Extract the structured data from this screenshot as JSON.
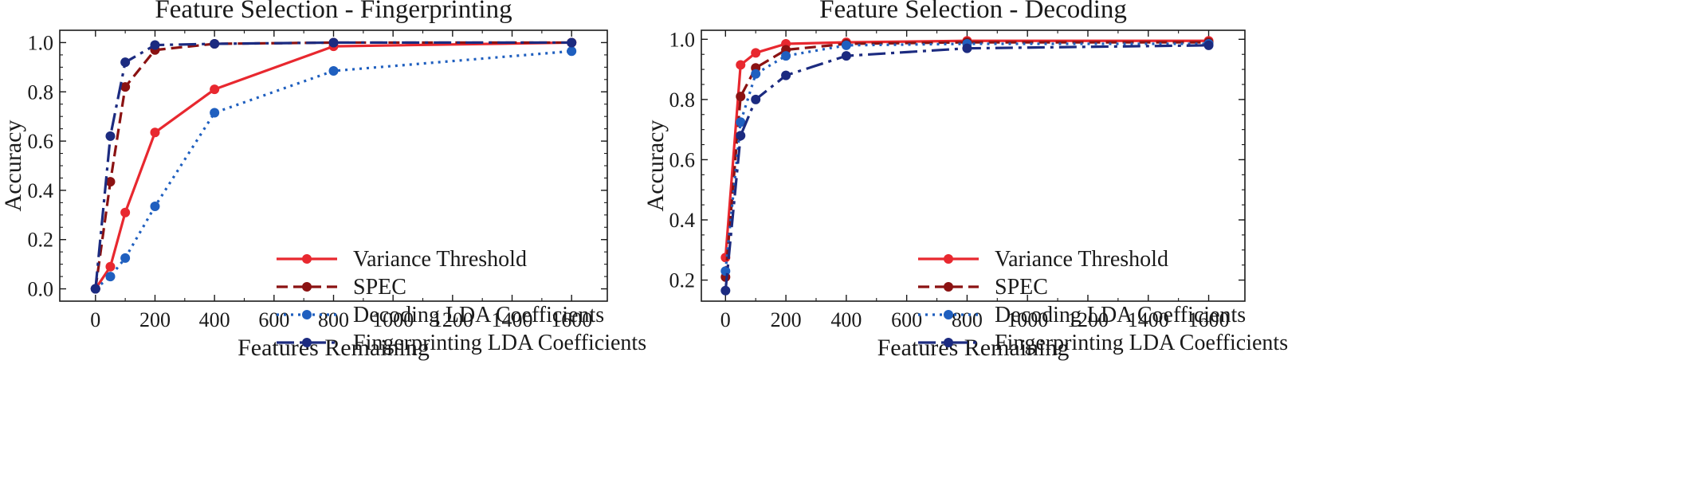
{
  "colors": {
    "variance": "#e8282f",
    "spec": "#8b1212",
    "decoding_lda": "#1f5fbf",
    "fingerprinting_lda": "#1c2b80",
    "axis": "#1a1a1a"
  },
  "chart_data": [
    {
      "type": "line",
      "title": "Feature Selection - Fingerprinting",
      "xlabel": "Features Remaining",
      "ylabel": "Accuracy",
      "xlim": [
        -120,
        1720
      ],
      "ylim": [
        -0.05,
        1.05
      ],
      "xticks": [
        0,
        200,
        400,
        600,
        800,
        1000,
        1200,
        1400,
        1600
      ],
      "yticks": [
        0.0,
        0.2,
        0.4,
        0.6,
        0.8,
        1.0
      ],
      "ytick_labels": [
        "0.0",
        "0.2",
        "0.4",
        "0.6",
        "0.8",
        "1.0"
      ],
      "grid": false,
      "legend_position": "lower-right",
      "series": [
        {
          "name": "Variance Threshold",
          "style": "solid",
          "color_key": "variance",
          "x": [
            0,
            50,
            100,
            200,
            400,
            800,
            1600
          ],
          "y": [
            0.0,
            0.09,
            0.31,
            0.635,
            0.81,
            0.985,
            1.0
          ]
        },
        {
          "name": "SPEC",
          "style": "dashed",
          "color_key": "spec",
          "x": [
            0,
            50,
            100,
            200,
            400,
            800,
            1600
          ],
          "y": [
            0.0,
            0.435,
            0.82,
            0.97,
            0.995,
            1.0,
            1.0
          ]
        },
        {
          "name": "Decoding LDA Coefficients",
          "style": "dotted",
          "color_key": "decoding_lda",
          "x": [
            0,
            50,
            100,
            200,
            400,
            800,
            1600
          ],
          "y": [
            0.0,
            0.05,
            0.125,
            0.335,
            0.715,
            0.885,
            0.965
          ]
        },
        {
          "name": "Fingerprinting LDA Coefficients",
          "style": "dashdot",
          "color_key": "fingerprinting_lda",
          "x": [
            0,
            50,
            100,
            200,
            400,
            800,
            1600
          ],
          "y": [
            0.0,
            0.62,
            0.92,
            0.99,
            0.995,
            1.0,
            1.0
          ]
        }
      ]
    },
    {
      "type": "line",
      "title": "Feature Selection - Decoding",
      "xlabel": "Features Remaining",
      "ylabel": "Accuracy",
      "xlim": [
        -80,
        1720
      ],
      "ylim": [
        0.13,
        1.03
      ],
      "xticks": [
        0,
        200,
        400,
        600,
        800,
        1000,
        1200,
        1400,
        1600
      ],
      "yticks": [
        0.2,
        0.4,
        0.6,
        0.8,
        1.0
      ],
      "ytick_labels": [
        "0.2",
        "0.4",
        "0.6",
        "0.8",
        "1.0"
      ],
      "grid": false,
      "legend_position": "lower-right",
      "series": [
        {
          "name": "Variance Threshold",
          "style": "solid",
          "color_key": "variance",
          "x": [
            0,
            50,
            100,
            200,
            400,
            800,
            1600
          ],
          "y": [
            0.275,
            0.915,
            0.955,
            0.985,
            0.99,
            0.995,
            0.995
          ]
        },
        {
          "name": "SPEC",
          "style": "dashed",
          "color_key": "spec",
          "x": [
            0,
            50,
            100,
            200,
            400,
            800,
            1600
          ],
          "y": [
            0.21,
            0.81,
            0.905,
            0.965,
            0.985,
            0.99,
            0.99
          ]
        },
        {
          "name": "Decoding LDA Coefficients",
          "style": "dotted",
          "color_key": "decoding_lda",
          "x": [
            0,
            50,
            100,
            200,
            400,
            800,
            1600
          ],
          "y": [
            0.23,
            0.725,
            0.885,
            0.945,
            0.98,
            0.985,
            0.985
          ]
        },
        {
          "name": "Fingerprinting LDA Coefficients",
          "style": "dashdot",
          "color_key": "fingerprinting_lda",
          "x": [
            0,
            50,
            100,
            200,
            400,
            800,
            1600
          ],
          "y": [
            0.165,
            0.68,
            0.8,
            0.88,
            0.945,
            0.97,
            0.98
          ]
        }
      ]
    }
  ]
}
